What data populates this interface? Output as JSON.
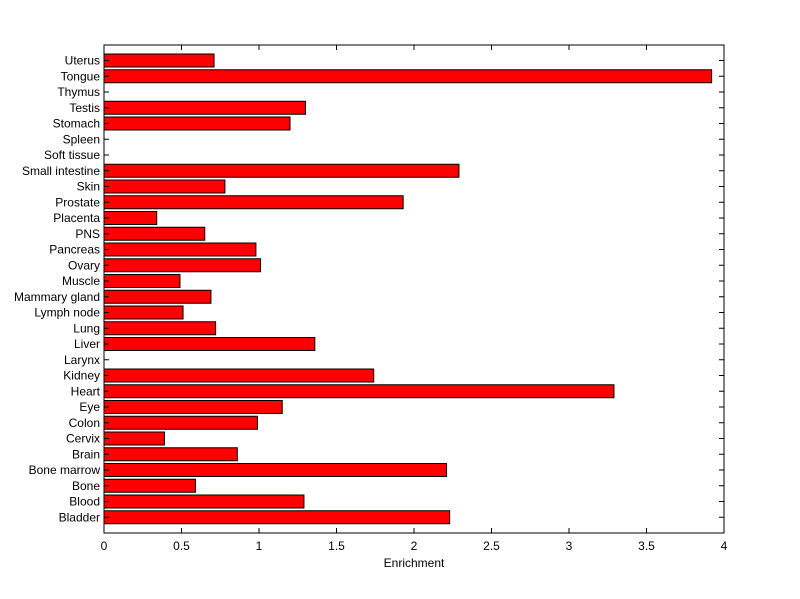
{
  "chart_data": {
    "type": "bar",
    "orientation": "horizontal",
    "title": "",
    "xlabel": "Enrichment",
    "ylabel": "",
    "xlim": [
      0,
      4
    ],
    "xticks": [
      0,
      0.5,
      1,
      1.5,
      2,
      2.5,
      3,
      3.5,
      4
    ],
    "xtick_labels": [
      "0",
      "0.5",
      "1",
      "1.5",
      "2",
      "2.5",
      "3",
      "3.5",
      "4"
    ],
    "grid": false,
    "bar_color": "#ff0000",
    "categories": [
      "Uterus",
      "Tongue",
      "Thymus",
      "Testis",
      "Stomach",
      "Spleen",
      "Soft tissue",
      "Small intestine",
      "Skin",
      "Prostate",
      "Placenta",
      "PNS",
      "Pancreas",
      "Ovary",
      "Muscle",
      "Mammary gland",
      "Lymph node",
      "Lung",
      "Liver",
      "Larynx",
      "Kidney",
      "Heart",
      "Eye",
      "Colon",
      "Cervix",
      "Brain",
      "Bone marrow",
      "Bone",
      "Blood",
      "Bladder"
    ],
    "values": [
      0.71,
      3.92,
      0,
      1.3,
      1.2,
      0,
      0,
      2.29,
      0.78,
      1.93,
      0.34,
      0.65,
      0.98,
      1.01,
      0.49,
      0.69,
      0.51,
      0.72,
      1.36,
      0,
      1.74,
      3.29,
      1.15,
      0.99,
      0.39,
      0.86,
      2.21,
      0.59,
      1.29,
      2.23
    ]
  }
}
